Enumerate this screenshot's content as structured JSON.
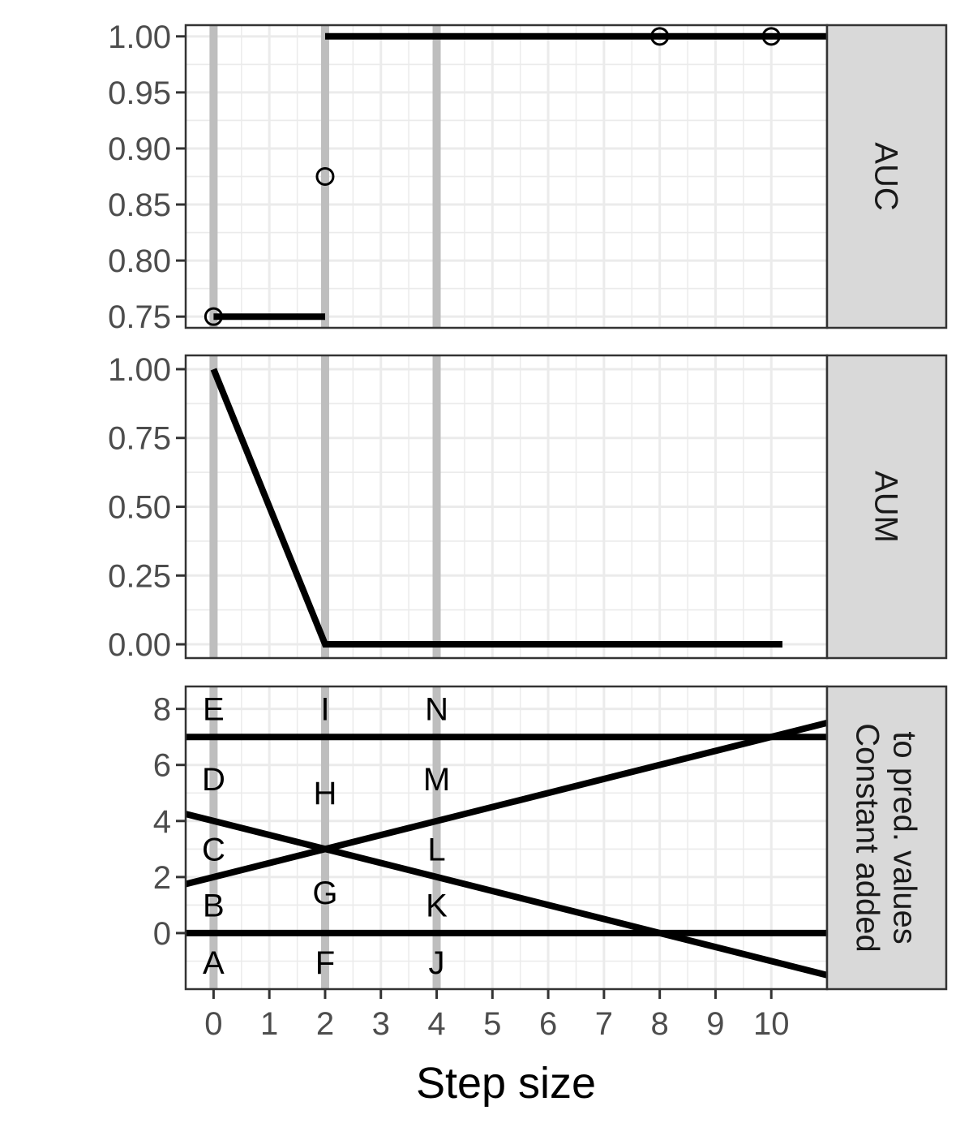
{
  "colors": {
    "panel_background": "#ffffff",
    "grid": "#ebebeb",
    "vline": "#bebebe",
    "data": "#000000",
    "strip_background": "#d9d9d9",
    "border": "#333333"
  },
  "chart_data": {
    "type": "line",
    "xlabel": "Step size",
    "xlim": [
      -0.5,
      11
    ],
    "x_ticks": [
      "0",
      "1",
      "2",
      "3",
      "4",
      "5",
      "6",
      "7",
      "8",
      "9",
      "10"
    ],
    "vertical_lines": [
      0,
      2,
      4
    ],
    "grid": true,
    "panels": [
      {
        "strip": [
          "AUC"
        ],
        "ylim": [
          0.74,
          1.01
        ],
        "y_ticks": [
          "0.75",
          "0.80",
          "0.85",
          "0.90",
          "0.95",
          "1.00"
        ],
        "segments": [
          {
            "x": [
              0,
              2
            ],
            "y": [
              0.75,
              0.75
            ]
          },
          {
            "x": [
              2,
              11
            ],
            "y": [
              1.0,
              1.0
            ]
          }
        ],
        "points": [
          {
            "x": 0,
            "y": 0.75
          },
          {
            "x": 2,
            "y": 0.875
          },
          {
            "x": 8,
            "y": 1.0
          },
          {
            "x": 10,
            "y": 1.0
          }
        ]
      },
      {
        "strip": [
          "AUM"
        ],
        "ylim": [
          -0.05,
          1.05
        ],
        "y_ticks": [
          "0.00",
          "0.25",
          "0.50",
          "0.75",
          "1.00"
        ],
        "segments": [
          {
            "x": [
              0,
              2,
              10.2
            ],
            "y": [
              1.0,
              0.0,
              0.0
            ]
          }
        ],
        "points": []
      },
      {
        "strip": [
          "Constant added",
          "to pred. values"
        ],
        "ylim": [
          -2,
          8.8
        ],
        "y_ticks": [
          "0",
          "2",
          "4",
          "6",
          "8"
        ],
        "segments": [
          {
            "x": [
              -0.5,
              11
            ],
            "y": [
              7,
              7
            ]
          },
          {
            "x": [
              -0.5,
              11
            ],
            "y": [
              0,
              0
            ]
          },
          {
            "x": [
              -0.5,
              11
            ],
            "y": [
              1.75,
              7.5
            ]
          },
          {
            "x": [
              -0.5,
              11
            ],
            "y": [
              4.25,
              -1.5
            ]
          }
        ],
        "points": [],
        "labels": [
          {
            "text": "A",
            "x": 0,
            "y": -1.05
          },
          {
            "text": "B",
            "x": 0,
            "y": 1.0
          },
          {
            "text": "C",
            "x": 0,
            "y": 3.0
          },
          {
            "text": "D",
            "x": 0,
            "y": 5.5
          },
          {
            "text": "E",
            "x": 0,
            "y": 8.0
          },
          {
            "text": "F",
            "x": 2,
            "y": -1.05
          },
          {
            "text": "G",
            "x": 2,
            "y": 1.45
          },
          {
            "text": "H",
            "x": 2,
            "y": 5.0
          },
          {
            "text": "I",
            "x": 2,
            "y": 8.0
          },
          {
            "text": "J",
            "x": 4,
            "y": -1.05
          },
          {
            "text": "K",
            "x": 4,
            "y": 1.0
          },
          {
            "text": "L",
            "x": 4,
            "y": 3.0
          },
          {
            "text": "M",
            "x": 4,
            "y": 5.5
          },
          {
            "text": "N",
            "x": 4,
            "y": 8.0
          }
        ]
      }
    ]
  }
}
